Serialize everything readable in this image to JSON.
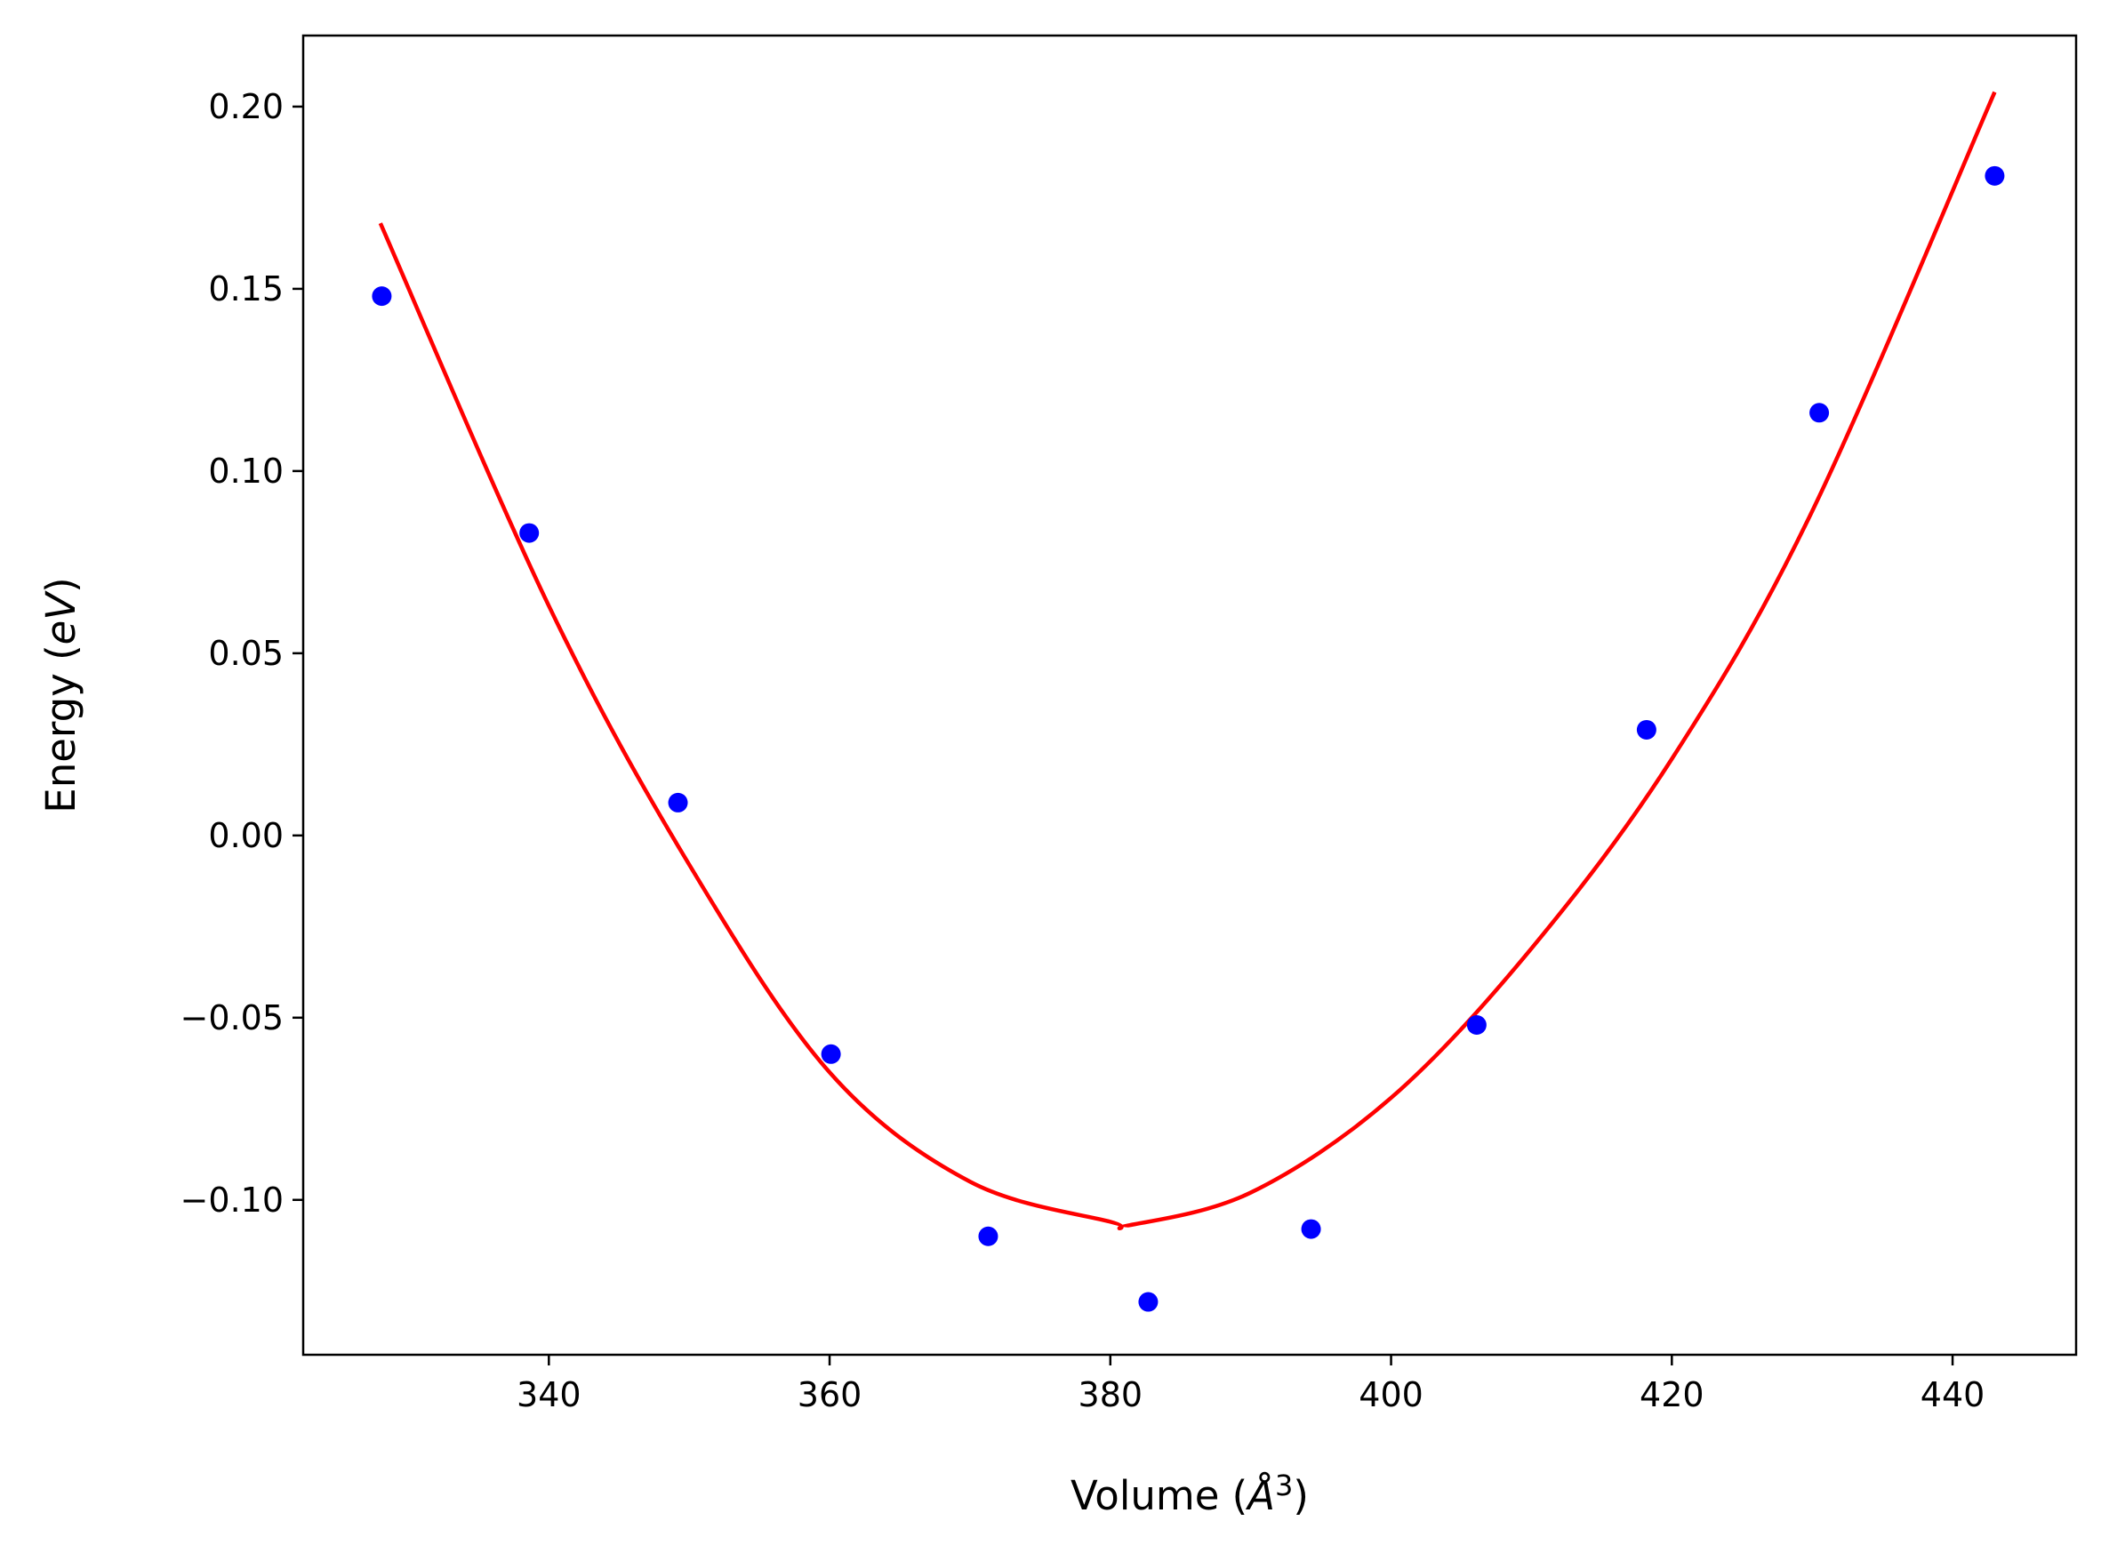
{
  "chart_data": {
    "type": "scatter",
    "title": "",
    "xlabel_text": "Volume (",
    "xlabel_unit": "Å",
    "xlabel_exp": "3",
    "xlabel_close": ")",
    "ylabel_text": "Energy (",
    "ylabel_unit": "eV",
    "ylabel_close": ")",
    "xlim": [
      322.5,
      448.8
    ],
    "ylim": [
      -0.1425,
      0.2195
    ],
    "x_ticks": [
      340,
      360,
      380,
      400,
      420,
      440
    ],
    "x_tick_labels": [
      "340",
      "360",
      "380",
      "400",
      "420",
      "440"
    ],
    "y_ticks": [
      0.2,
      0.15,
      0.1,
      0.05,
      0.0,
      -0.05,
      -0.1
    ],
    "y_tick_labels": [
      "0.20",
      "0.15",
      "0.10",
      "0.05",
      "0.00",
      "−0.05",
      "−0.10"
    ],
    "grid": false,
    "series": [
      {
        "kind": "points",
        "color": "#0000ff",
        "x": [
          328.1,
          338.6,
          349.2,
          360.1,
          371.3,
          382.7,
          394.3,
          406.1,
          418.2,
          430.5,
          443.0
        ],
        "y": [
          0.148,
          0.083,
          0.009,
          -0.06,
          -0.11,
          -0.128,
          -0.108,
          -0.052,
          0.029,
          0.116,
          0.181
        ]
      },
      {
        "kind": "fit-line",
        "color": "#ff0000",
        "x": [
          328.0,
          340.0,
          350.0,
          360.0,
          370.0,
          380.0,
          381.3,
          390.0,
          400.0,
          410.0,
          420.0,
          430.0,
          443.0
        ],
        "y": [
          0.168,
          0.063,
          -0.008,
          -0.065,
          -0.095,
          -0.106,
          -0.107,
          -0.098,
          -0.072,
          -0.031,
          0.021,
          0.089,
          0.204
        ]
      }
    ]
  }
}
